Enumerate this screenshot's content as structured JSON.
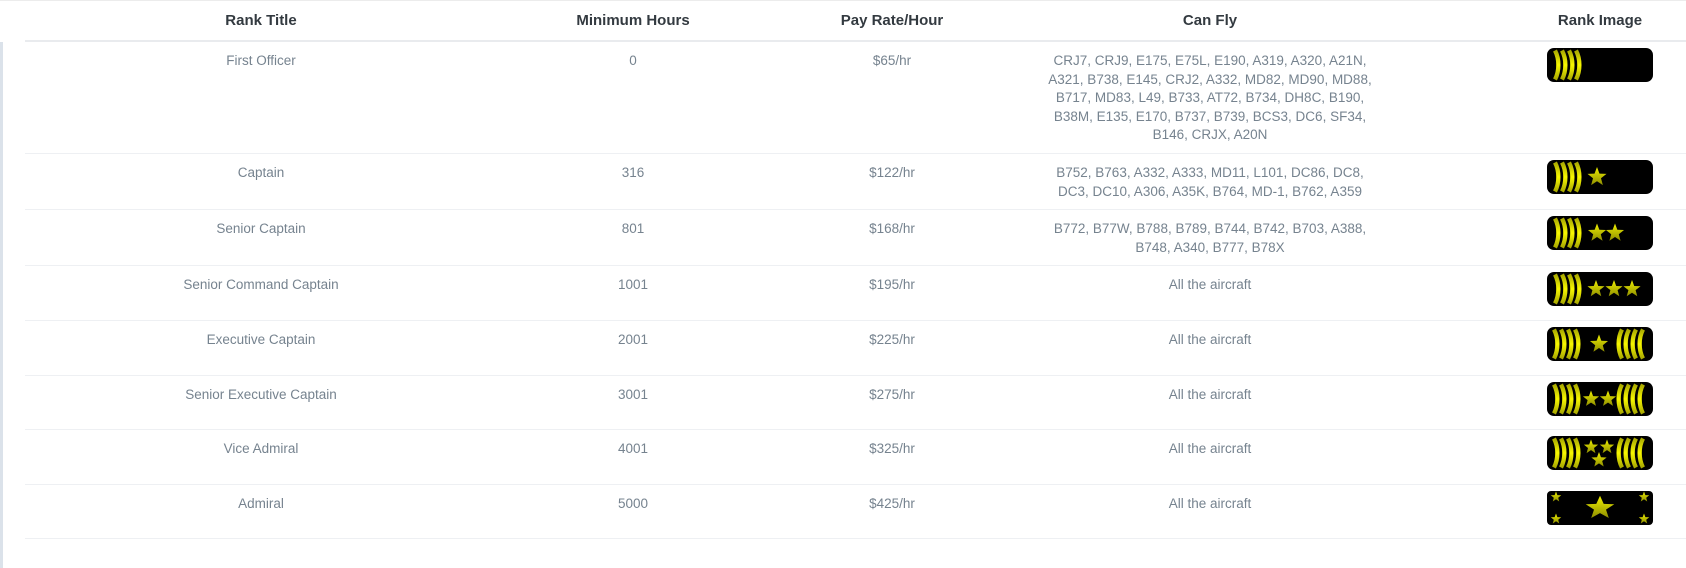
{
  "colors": {
    "epaulette_black": "#000000",
    "stripe_yellow_bright": "#f8f800",
    "stripe_yellow_dark": "#a8a800",
    "star_yellow_top": "#f0f000",
    "star_yellow_bottom": "#8f8f00",
    "header_text": "#333a40",
    "body_text": "#76838f",
    "row_border": "#eef0f3",
    "header_border": "#e9ebee",
    "left_strip": "#dbe2ea"
  },
  "table": {
    "columns": [
      {
        "key": "rank_title",
        "label": "Rank Title"
      },
      {
        "key": "min_hours",
        "label": "Minimum Hours"
      },
      {
        "key": "pay_rate",
        "label": "Pay Rate/Hour"
      },
      {
        "key": "can_fly",
        "label": "Can Fly"
      },
      {
        "key": "rank_image",
        "label": "Rank Image"
      }
    ],
    "rows": [
      {
        "rank_title": "First Officer",
        "min_hours": "0",
        "pay_rate": "$65/hr",
        "can_fly": "CRJ7, CRJ9, E175, E75L, E190, A319, A320, A21N, A321, B738, E145, CRJ2, A332, MD82, MD90, MD88, B717, MD83, L49, B733, AT72, B734, DH8C, B190, B38M, E135, E170, B737, B739, BCS3, DC6, SF34, B146, CRJX, A20N",
        "rank_image": {
          "icon": "epaulette-4-stripes-icon",
          "left_stripes": 4,
          "right_stripes": 0,
          "stars": 0,
          "star_layout": "row"
        }
      },
      {
        "rank_title": "Captain",
        "min_hours": "316",
        "pay_rate": "$122/hr",
        "can_fly": "B752, B763, A332, A333, MD11, L101, DC86, DC8, DC3, DC10, A306, A35K, B764, MD-1, B762, A359",
        "rank_image": {
          "icon": "epaulette-1-star-icon",
          "left_stripes": 4,
          "right_stripes": 0,
          "stars": 1,
          "star_layout": "row"
        }
      },
      {
        "rank_title": "Senior Captain",
        "min_hours": "801",
        "pay_rate": "$168/hr",
        "can_fly": "B772, B77W, B788, B789, B744, B742, B703, A388, B748, A340, B777, B78X",
        "rank_image": {
          "icon": "epaulette-2-stars-icon",
          "left_stripes": 4,
          "right_stripes": 0,
          "stars": 2,
          "star_layout": "row"
        }
      },
      {
        "rank_title": "Senior Command Captain",
        "min_hours": "1001",
        "pay_rate": "$195/hr",
        "can_fly": "All the aircraft",
        "rank_image": {
          "icon": "epaulette-3-stars-icon",
          "left_stripes": 4,
          "right_stripes": 0,
          "stars": 3,
          "star_layout": "row"
        }
      },
      {
        "rank_title": "Executive Captain",
        "min_hours": "2001",
        "pay_rate": "$225/hr",
        "can_fly": "All the aircraft",
        "rank_image": {
          "icon": "epaulette-1-star-double-stripes-icon",
          "left_stripes": 4,
          "right_stripes": 4,
          "stars": 1,
          "star_layout": "row"
        }
      },
      {
        "rank_title": "Senior Executive Captain",
        "min_hours": "3001",
        "pay_rate": "$275/hr",
        "can_fly": "All the aircraft",
        "rank_image": {
          "icon": "epaulette-2-stars-double-stripes-icon",
          "left_stripes": 4,
          "right_stripes": 4,
          "stars": 2,
          "star_layout": "row"
        }
      },
      {
        "rank_title": "Vice Admiral",
        "min_hours": "4001",
        "pay_rate": "$325/hr",
        "can_fly": "All the aircraft",
        "rank_image": {
          "icon": "epaulette-3-stars-triangle-double-stripes-icon",
          "left_stripes": 4,
          "right_stripes": 4,
          "stars": 3,
          "star_layout": "triangle"
        }
      },
      {
        "rank_title": "Admiral",
        "min_hours": "5000",
        "pay_rate": "$425/hr",
        "can_fly": "All the aircraft",
        "rank_image": {
          "icon": "epaulette-admiral-big-star-icon",
          "left_stripes": 0,
          "right_stripes": 0,
          "stars": 1,
          "star_layout": "admiral",
          "corner_stars": 4
        }
      }
    ]
  }
}
